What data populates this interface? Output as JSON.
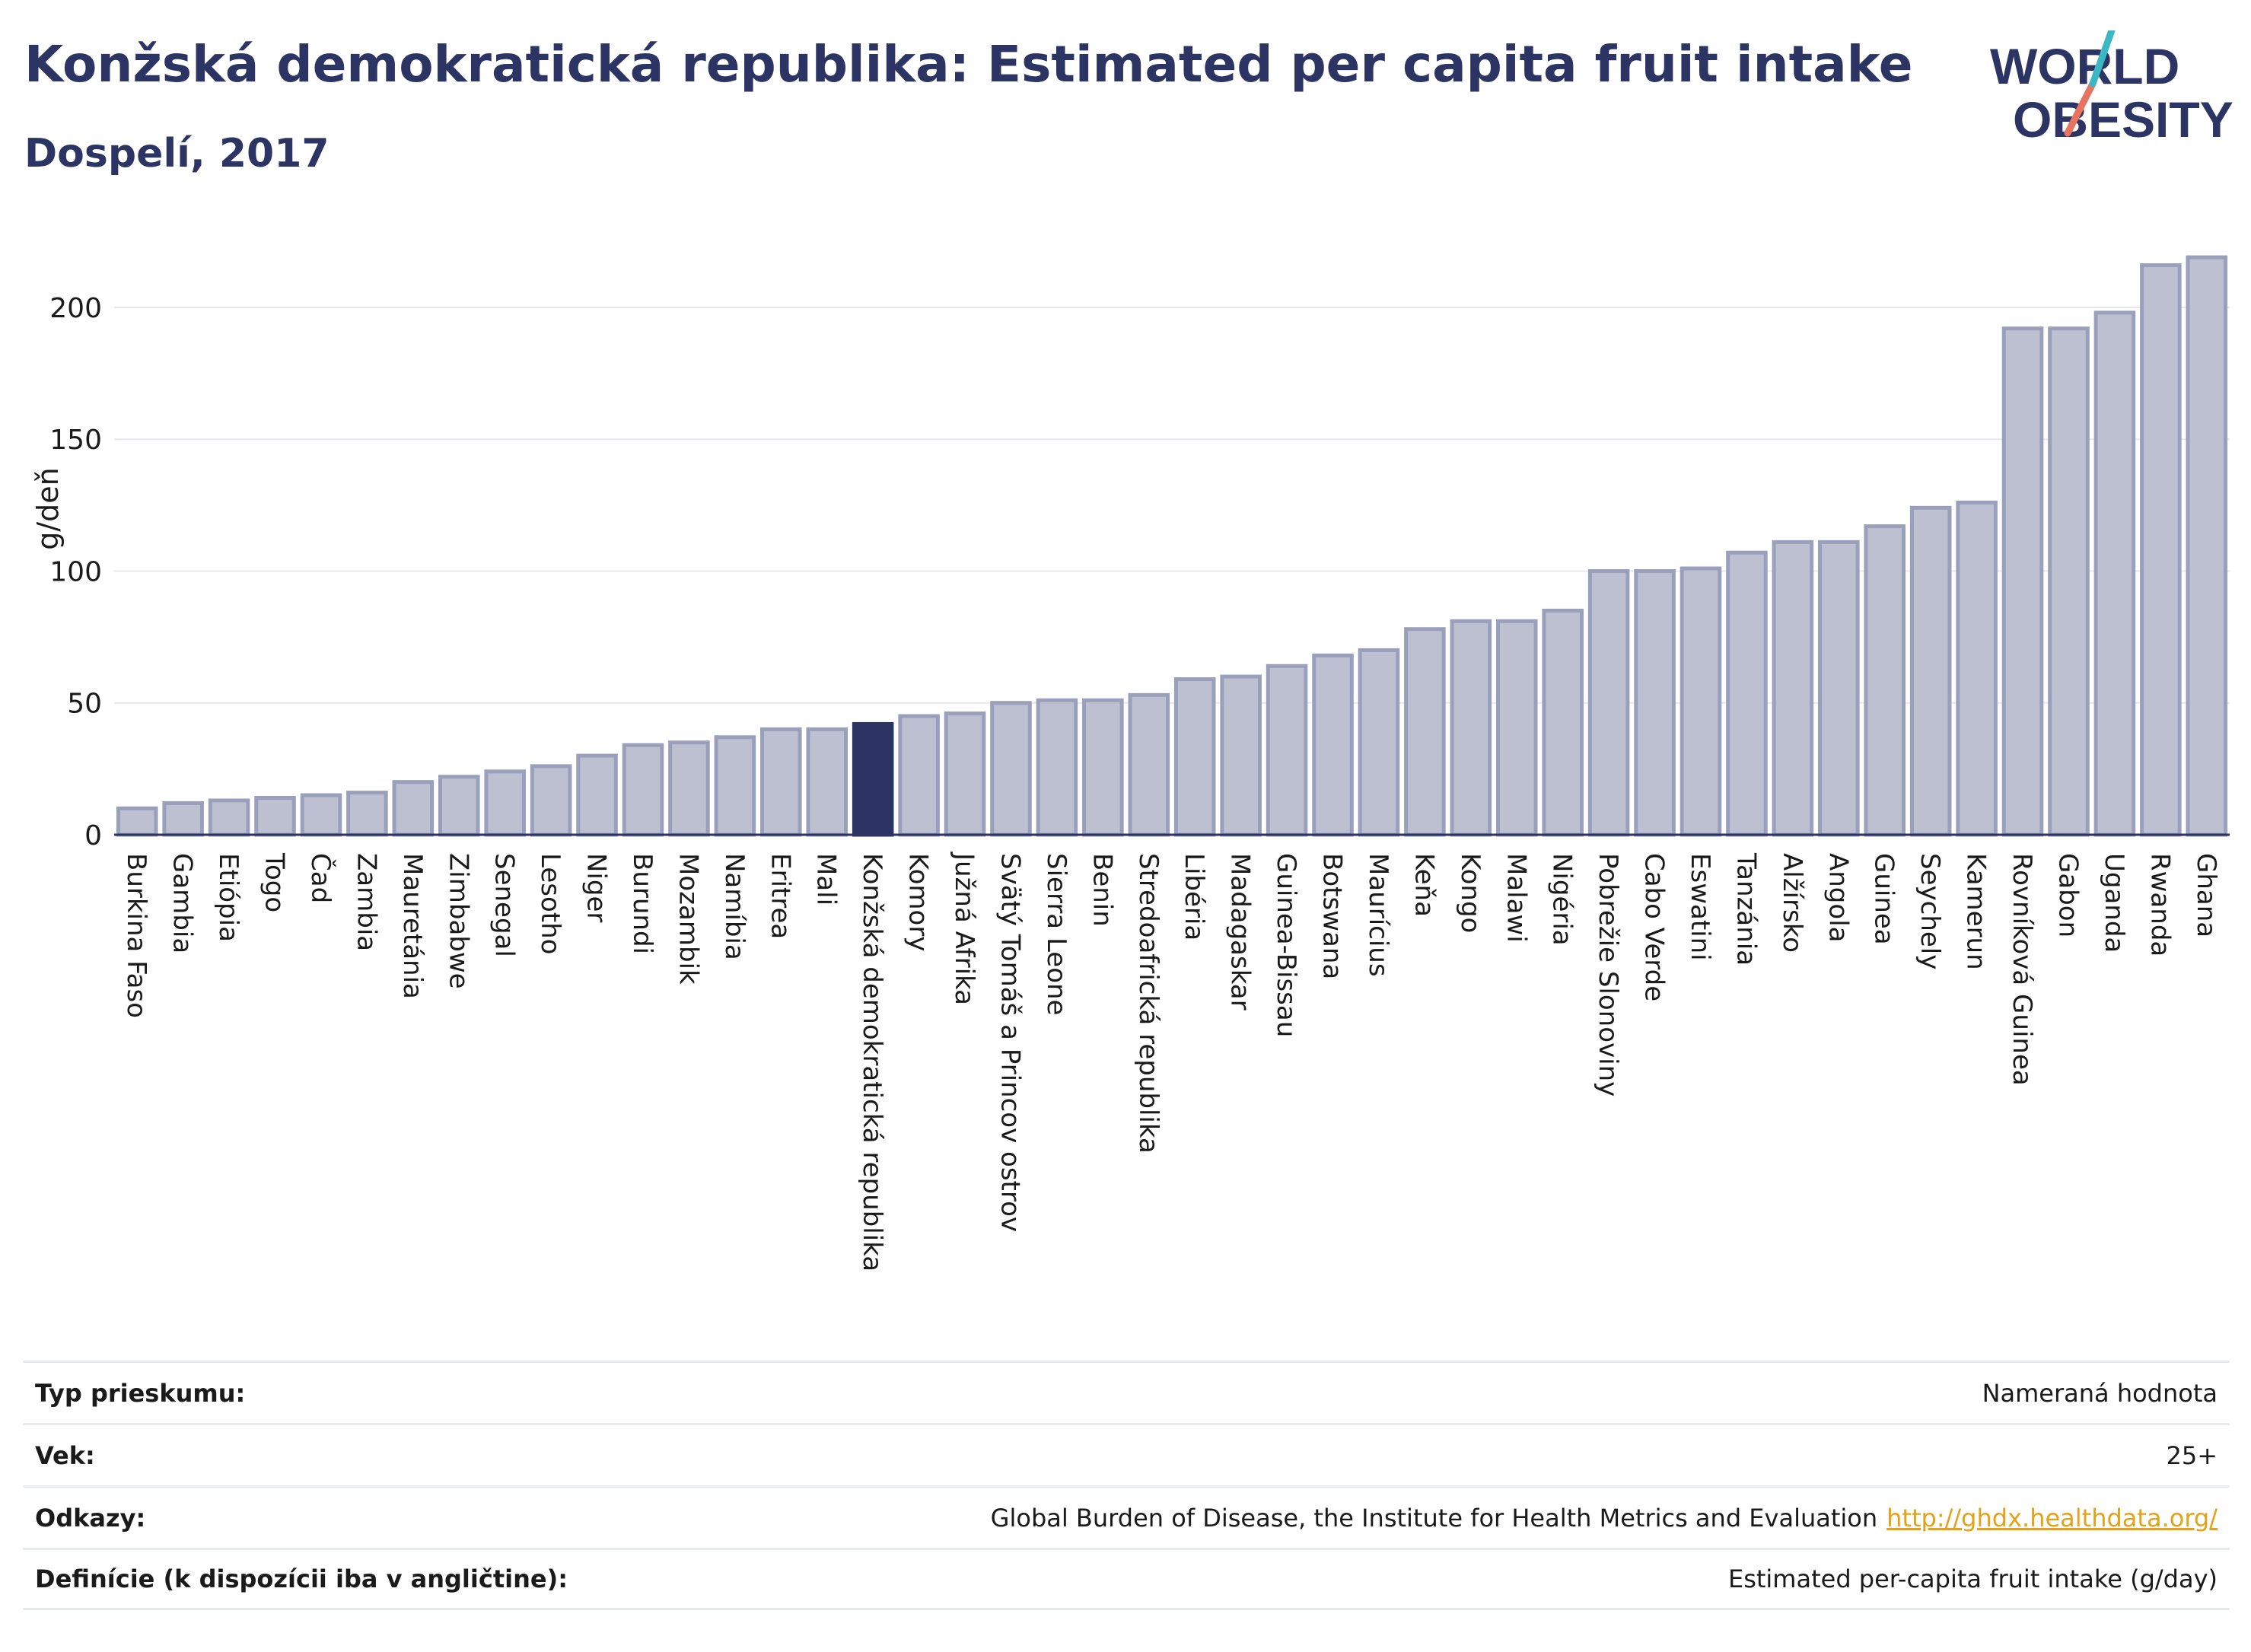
{
  "title": "Konžská demokratická republika: Estimated per capita fruit intake",
  "subtitle": "Dospelí, 2017",
  "logo": {
    "line1": "WORLD",
    "line2": "OBESITY"
  },
  "colors": {
    "accent": "#2b3463",
    "bar": "#bcc0d0",
    "bar_edge": "#9aa0bb",
    "highlight": "#2b3463",
    "link": "#e3a21a",
    "logo_teal": "#3bb8c3",
    "logo_coral": "#e8735f"
  },
  "chart_data": {
    "type": "bar",
    "ylabel": "g/deň",
    "ylim": [
      0,
      230
    ],
    "yticks": [
      0,
      50,
      100,
      150,
      200
    ],
    "grid": true,
    "highlight": "Konžská demokratická republika",
    "categories": [
      "Burkina Faso",
      "Gambia",
      "Etiópia",
      "Togo",
      "Čad",
      "Zambia",
      "Mauretánia",
      "Zimbabwe",
      "Senegal",
      "Lesotho",
      "Niger",
      "Burundi",
      "Mozambik",
      "Namíbia",
      "Eritrea",
      "Mali",
      "Konžská demokratická republika",
      "Komory",
      "Južná Afrika",
      "Svätý Tomáš a Princov ostrov",
      "Sierra Leone",
      "Benin",
      "Stredoafrická republika",
      "Libéria",
      "Madagaskar",
      "Guinea-Bissau",
      "Botswana",
      "Maurícius",
      "Keňa",
      "Kongo",
      "Malawi",
      "Nigéria",
      "Pobrežie Slonoviny",
      "Cabo Verde",
      "Eswatini",
      "Tanzánia",
      "Alžírsko",
      "Angola",
      "Guinea",
      "Seychely",
      "Kamerun",
      "Rovníková Guinea",
      "Gabon",
      "Uganda",
      "Rwanda",
      "Ghana"
    ],
    "values": [
      10,
      12,
      13,
      14,
      15,
      16,
      20,
      22,
      24,
      26,
      30,
      34,
      35,
      37,
      40,
      40,
      42,
      45,
      46,
      50,
      51,
      51,
      53,
      59,
      60,
      64,
      68,
      70,
      78,
      81,
      81,
      85,
      100,
      100,
      101,
      107,
      111,
      111,
      117,
      124,
      126,
      192,
      192,
      198,
      216,
      219
    ]
  },
  "info": [
    {
      "label": "Typ prieskumu:",
      "value": "Nameraná hodnota"
    },
    {
      "label": "Vek:",
      "value": "25+"
    },
    {
      "label": "Odkazy:",
      "value": "Global Burden of Disease, the Institute for Health Metrics and Evaluation",
      "link": "http://ghdx.healthdata.org/"
    },
    {
      "label": "Definície (k dispozícii iba v angličtine):",
      "value": "Estimated per-capita fruit intake (g/day)"
    }
  ]
}
